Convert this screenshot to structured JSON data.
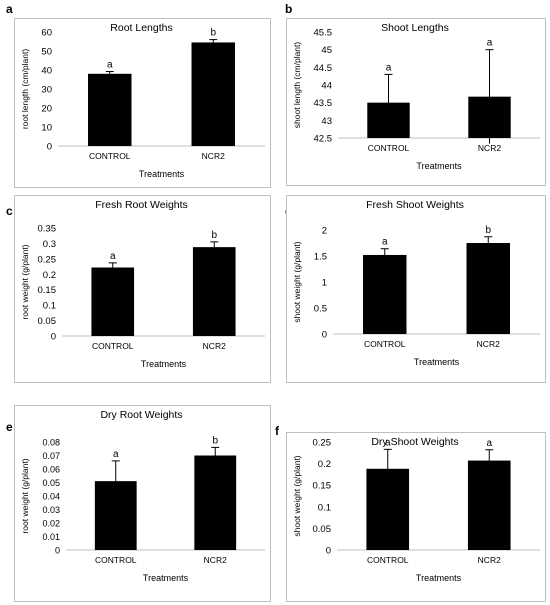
{
  "chart_data": [
    {
      "panel": "a",
      "type": "bar",
      "title": "Root Lengths",
      "xlabel": "Treatments",
      "ylabel": "root length (cm/plant)",
      "categories": [
        "CONTROL",
        "NCR2"
      ],
      "values": [
        38.0,
        54.5
      ],
      "errors": [
        1.2,
        1.5
      ],
      "letters": [
        "a",
        "b"
      ],
      "ylim": [
        0,
        60
      ],
      "yticks": [
        "0",
        "10",
        "20",
        "30",
        "40",
        "50",
        "60"
      ],
      "grid": false,
      "bar_color": "#000000"
    },
    {
      "panel": "b",
      "type": "bar",
      "title": "Shoot Lengths",
      "xlabel": "Treatments",
      "ylabel": "shoot length (cm/plant)",
      "categories": [
        "CONTROL",
        "NCR2"
      ],
      "values": [
        43.5,
        43.67
      ],
      "errors": [
        0.8,
        1.33
      ],
      "letters": [
        "a",
        "a"
      ],
      "ylim": [
        42.5,
        45.5
      ],
      "yticks": [
        "42.5",
        "43",
        "43.5",
        "44",
        "44.5",
        "45",
        "45.5"
      ],
      "grid": false,
      "bar_color": "#000000"
    },
    {
      "panel": "c",
      "type": "bar",
      "title": "Fresh Root Weights",
      "xlabel": "Treatments",
      "ylabel": "root weight (g/plant)",
      "categories": [
        "CONTROL",
        "NCR2"
      ],
      "values": [
        0.222,
        0.288
      ],
      "errors": [
        0.015,
        0.017
      ],
      "letters": [
        "a",
        "b"
      ],
      "ylim": [
        0,
        0.35
      ],
      "yticks": [
        "0",
        "0.05",
        "0.1",
        "0.15",
        "0.2",
        "0.25",
        "0.3",
        "0.35"
      ],
      "grid": false,
      "bar_color": "#000000"
    },
    {
      "panel": "d",
      "type": "bar",
      "title": "Fresh Shoot Weights",
      "xlabel": "Treatments",
      "ylabel": "shoot weight (g/plant)",
      "categories": [
        "CONTROL",
        "NCR2"
      ],
      "values": [
        1.52,
        1.75
      ],
      "errors": [
        0.12,
        0.12
      ],
      "letters": [
        "a",
        "b"
      ],
      "ylim": [
        0,
        2
      ],
      "yticks": [
        "0",
        "0.5",
        "1",
        "1.5",
        "2"
      ],
      "grid": false,
      "bar_color": "#000000"
    },
    {
      "panel": "e",
      "type": "bar",
      "title": "Dry Root Weights",
      "xlabel": "Treatments",
      "ylabel": "root weight (g/plant)",
      "categories": [
        "CONTROL",
        "NCR2"
      ],
      "values": [
        0.051,
        0.07
      ],
      "errors": [
        0.015,
        0.006
      ],
      "letters": [
        "a",
        "b"
      ],
      "ylim": [
        0,
        0.08
      ],
      "yticks": [
        "0",
        "0.01",
        "0.02",
        "0.03",
        "0.04",
        "0.05",
        "0.06",
        "0.07",
        "0.08"
      ],
      "grid": false,
      "bar_color": "#000000"
    },
    {
      "panel": "f",
      "type": "bar",
      "title": "Dry Shoot Weights",
      "xlabel": "Treatments",
      "ylabel": "shoot weight (g/plant)",
      "categories": [
        "CONTROL",
        "NCR2"
      ],
      "values": [
        0.188,
        0.207
      ],
      "errors": [
        0.045,
        0.025
      ],
      "letters": [
        "a",
        "a"
      ],
      "ylim": [
        0,
        0.25
      ],
      "yticks": [
        "0",
        "0.05",
        "0.1",
        "0.15",
        "0.2",
        "0.25"
      ],
      "grid": false,
      "bar_color": "#000000"
    }
  ]
}
